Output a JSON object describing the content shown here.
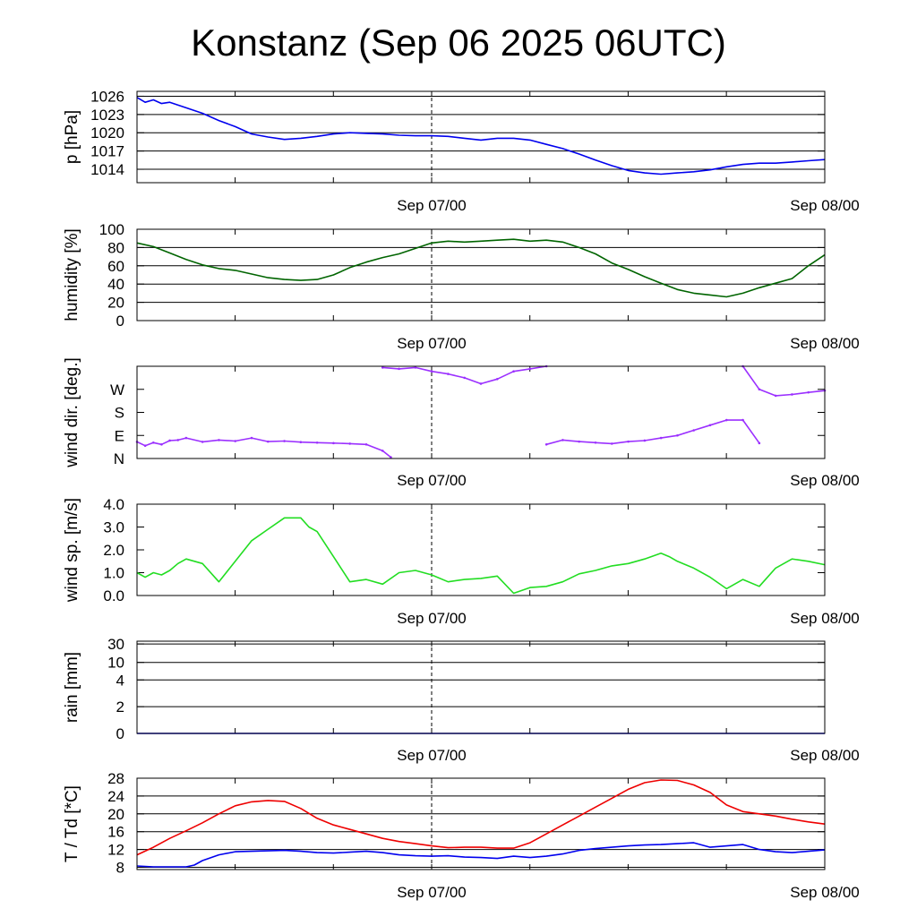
{
  "title": "Konstanz (Sep 06 2025 06UTC)",
  "chart_data": [
    {
      "type": "line",
      "ylabel": "p [hPa]",
      "yticks": [
        1014,
        1017,
        1020,
        1023,
        1026
      ],
      "ylim": [
        1011.8,
        1026.8
      ],
      "grid": true,
      "xtick_labels": [
        "Sep 07/00",
        "Sep 08/00"
      ],
      "series": [
        {
          "color": "#0000ee",
          "x": [
            0,
            0.5,
            1,
            1.5,
            2,
            3,
            4,
            5,
            6,
            7,
            8,
            9,
            10,
            11,
            12,
            13,
            14,
            15,
            16,
            17,
            18,
            19,
            20,
            21,
            22,
            23,
            24,
            25,
            26,
            27,
            28,
            29,
            30,
            31,
            32,
            33,
            34,
            35,
            36,
            37,
            38,
            39,
            40,
            41,
            42
          ],
          "values": [
            1025.8,
            1025.0,
            1025.4,
            1024.8,
            1025.0,
            1024.1,
            1023.2,
            1022.0,
            1021.0,
            1019.8,
            1019.3,
            1018.9,
            1019.1,
            1019.4,
            1019.8,
            1020.0,
            1019.9,
            1019.8,
            1019.6,
            1019.5,
            1019.5,
            1019.4,
            1019.1,
            1018.8,
            1019.1,
            1019.1,
            1018.8,
            1018.1,
            1017.4,
            1016.5,
            1015.5,
            1014.6,
            1013.8,
            1013.4,
            1013.2,
            1013.4,
            1013.6,
            1013.9,
            1014.4,
            1014.8,
            1015.0,
            1015.0,
            1015.2,
            1015.4,
            1015.6
          ]
        }
      ]
    },
    {
      "type": "line",
      "ylabel": "humidity [%]",
      "yticks": [
        0,
        20,
        40,
        60,
        80,
        100
      ],
      "ylim": [
        0,
        100
      ],
      "grid": true,
      "xtick_labels": [
        "Sep 07/00",
        "Sep 08/00"
      ],
      "series": [
        {
          "color": "#006400",
          "x": [
            0,
            1,
            2,
            3,
            4,
            5,
            6,
            7,
            8,
            9,
            10,
            11,
            12,
            13,
            14,
            15,
            16,
            17,
            18,
            19,
            20,
            21,
            22,
            23,
            24,
            25,
            26,
            27,
            28,
            29,
            30,
            31,
            32,
            33,
            34,
            35,
            36,
            37,
            38,
            39,
            40,
            41,
            42
          ],
          "values": [
            85,
            81,
            74,
            67,
            61,
            57,
            55,
            51,
            47,
            45,
            44,
            45,
            50,
            58,
            64,
            69,
            73,
            79,
            85,
            87,
            86,
            87,
            88,
            89,
            87,
            88,
            86,
            80,
            73,
            63,
            56,
            48,
            41,
            34,
            30,
            28,
            26,
            30,
            36,
            41,
            46,
            60,
            72
          ]
        }
      ]
    },
    {
      "type": "scatter",
      "ylabel": "wind dir. [deg.]",
      "yticks": [
        0,
        90,
        180,
        270
      ],
      "ytick_labels": [
        "N",
        "E",
        "S",
        "W"
      ],
      "ylim": [
        0,
        360
      ],
      "grid": false,
      "xtick_labels": [
        "Sep 07/00",
        "Sep 08/00"
      ],
      "series": [
        {
          "color": "#9b30ff",
          "segments": [
            {
              "x": [
                0,
                0.5,
                1,
                1.5,
                2,
                2.5,
                3,
                4,
                5,
                6,
                7,
                8,
                9,
                10,
                11,
                12,
                13,
                14,
                15,
                15.5
              ],
              "values": [
                65,
                50,
                62,
                55,
                70,
                72,
                80,
                65,
                72,
                68,
                80,
                66,
                68,
                64,
                62,
                60,
                58,
                55,
                30,
                5
              ]
            },
            {
              "x": [
                15,
                16,
                17,
                18,
                19,
                20,
                21,
                22,
                23,
                24,
                25
              ],
              "values": [
                355,
                350,
                355,
                340,
                330,
                315,
                292,
                310,
                340,
                350,
                360
              ]
            },
            {
              "x": [
                25,
                26,
                27,
                28,
                29,
                30,
                31,
                32,
                33,
                34,
                35,
                36,
                37,
                38
              ],
              "values": [
                55,
                72,
                66,
                62,
                58,
                66,
                70,
                80,
                90,
                110,
                130,
                150,
                150,
                60
              ]
            },
            {
              "x": [
                37,
                38,
                39,
                40,
                41,
                42
              ],
              "values": [
                360,
                270,
                245,
                250,
                258,
                265
              ]
            }
          ]
        }
      ]
    },
    {
      "type": "line",
      "ylabel": "wind sp. [m/s]",
      "yticks": [
        0.0,
        1.0,
        2.0,
        3.0,
        4.0
      ],
      "ytick_labels": [
        "0.0",
        "1.0",
        "2.0",
        "3.0",
        "4.0"
      ],
      "ylim": [
        0,
        4
      ],
      "grid": false,
      "xtick_labels": [
        "Sep 07/00",
        "Sep 08/00"
      ],
      "series": [
        {
          "color": "#22dd22",
          "x": [
            0,
            0.5,
            1,
            1.5,
            2,
            2.5,
            3,
            4,
            5,
            6,
            7,
            8,
            9,
            10,
            10.5,
            11,
            12,
            13,
            14,
            15,
            16,
            17,
            18,
            19,
            20,
            21,
            22,
            23,
            24,
            25,
            26,
            27,
            28,
            29,
            30,
            31,
            32,
            32.5,
            33,
            34,
            35,
            36,
            37,
            38,
            39,
            40,
            41,
            42
          ],
          "values": [
            1.0,
            0.8,
            1.0,
            0.9,
            1.1,
            1.4,
            1.6,
            1.4,
            0.6,
            1.5,
            2.4,
            2.9,
            3.4,
            3.4,
            3.0,
            2.8,
            1.7,
            0.6,
            0.7,
            0.5,
            1.0,
            1.1,
            0.9,
            0.6,
            0.7,
            0.75,
            0.85,
            0.1,
            0.35,
            0.4,
            0.6,
            0.95,
            1.1,
            1.3,
            1.4,
            1.6,
            1.85,
            1.7,
            1.5,
            1.2,
            0.8,
            0.3,
            0.7,
            0.4,
            1.2,
            1.6,
            1.5,
            1.35
          ]
        }
      ]
    },
    {
      "type": "line",
      "ylabel": "rain [mm]",
      "yticks": [
        0,
        2,
        4,
        10,
        30
      ],
      "ytick_labels": [
        "0",
        "2",
        "4",
        "10",
        "30"
      ],
      "ylim": [
        0,
        30
      ],
      "grid": true,
      "xtick_labels": [
        "Sep 07/00",
        "Sep 08/00"
      ],
      "series": [
        {
          "color": "#0000ee",
          "x": [
            0,
            42
          ],
          "values": [
            0,
            0
          ]
        }
      ]
    },
    {
      "type": "line",
      "ylabel": "T / Td [*C]",
      "yticks": [
        8,
        12,
        16,
        20,
        24,
        28
      ],
      "ylim": [
        7.5,
        28
      ],
      "grid": true,
      "xtick_labels": [
        "Sep 07/00",
        "Sep 08/00"
      ],
      "series": [
        {
          "color": "#ee0000",
          "x": [
            0,
            1,
            2,
            3,
            4,
            5,
            6,
            7,
            8,
            9,
            10,
            11,
            12,
            13,
            14,
            15,
            16,
            17,
            18,
            19,
            20,
            21,
            22,
            23,
            24,
            25,
            26,
            27,
            28,
            29,
            30,
            31,
            32,
            33,
            34,
            35,
            36,
            37,
            38,
            39,
            40,
            41,
            42
          ],
          "values": [
            10.8,
            12.5,
            14.5,
            16.2,
            18.0,
            20.0,
            21.8,
            22.7,
            23.0,
            22.8,
            21.2,
            19.0,
            17.5,
            16.5,
            15.5,
            14.5,
            13.8,
            13.3,
            12.8,
            12.4,
            12.5,
            12.5,
            12.3,
            12.3,
            13.5,
            15.5,
            17.5,
            19.5,
            21.5,
            23.5,
            25.5,
            27.0,
            27.6,
            27.5,
            26.5,
            24.8,
            22.0,
            20.5,
            20.0,
            19.5,
            18.8,
            18.2,
            17.7
          ]
        },
        {
          "color": "#0000ee",
          "x": [
            0,
            1,
            2,
            3,
            3.5,
            4,
            5,
            6,
            7,
            8,
            9,
            10,
            11,
            12,
            13,
            14,
            15,
            16,
            17,
            18,
            19,
            20,
            21,
            22,
            23,
            24,
            25,
            26,
            27,
            28,
            29,
            30,
            31,
            32,
            33,
            34,
            35,
            36,
            37,
            38,
            39,
            40,
            41,
            42
          ],
          "values": [
            8.3,
            8.1,
            8.1,
            8.1,
            8.5,
            9.5,
            10.8,
            11.5,
            11.6,
            11.7,
            11.8,
            11.6,
            11.3,
            11.2,
            11.4,
            11.6,
            11.3,
            10.8,
            10.6,
            10.5,
            10.6,
            10.3,
            10.2,
            10.0,
            10.5,
            10.2,
            10.5,
            11.0,
            11.8,
            12.2,
            12.5,
            12.8,
            13.0,
            13.1,
            13.3,
            13.5,
            12.5,
            12.8,
            13.1,
            12.0,
            11.5,
            11.3,
            11.6,
            11.9
          ]
        }
      ]
    }
  ]
}
